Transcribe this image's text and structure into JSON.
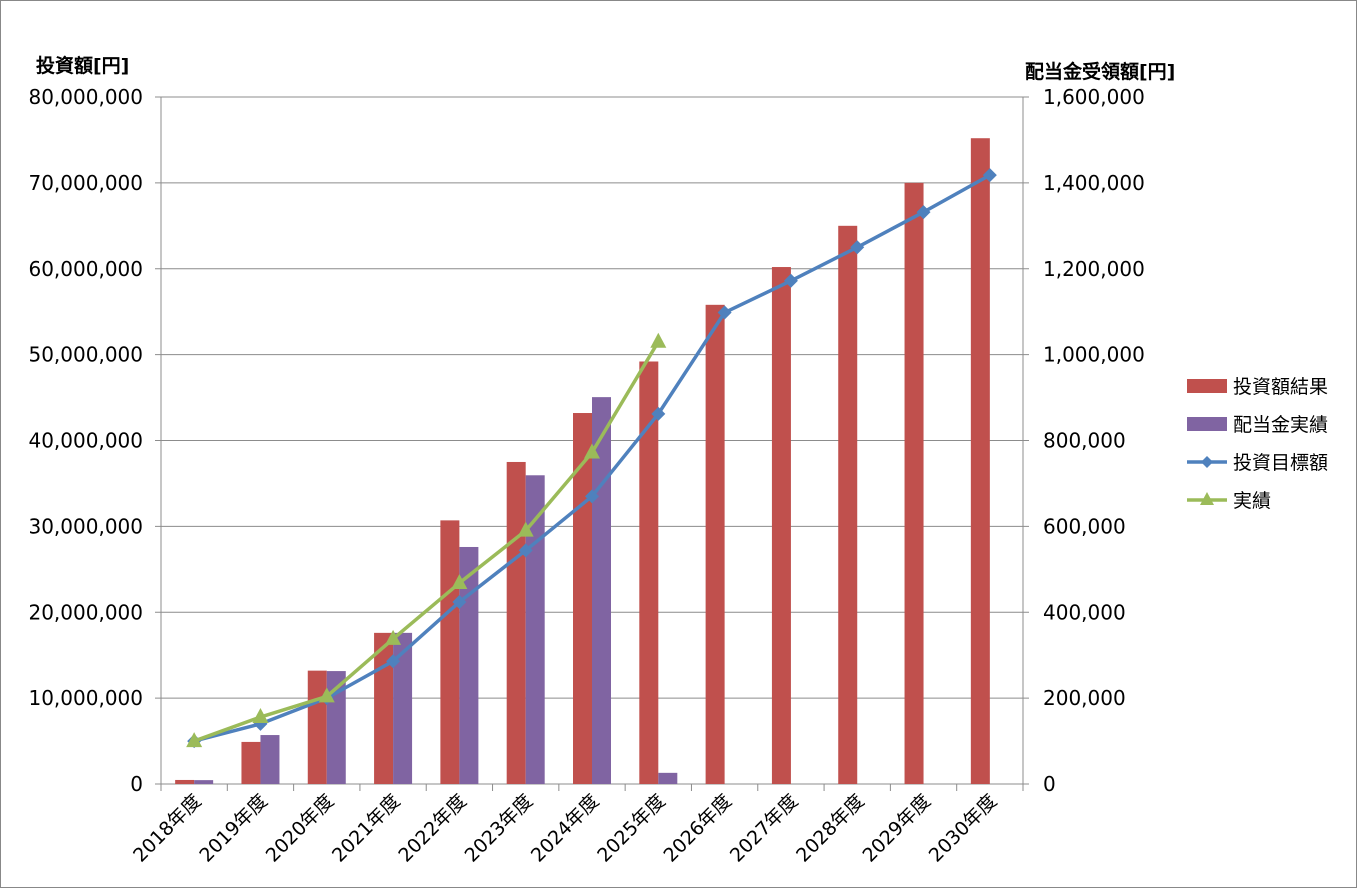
{
  "chart_data": {
    "type": "bar",
    "left_axis_title": "投資額[円]",
    "right_axis_title": "配当金受領額[円]",
    "categories": [
      "2018年度",
      "2019年度",
      "2020年度",
      "2021年度",
      "2022年度",
      "2023年度",
      "2024年度",
      "2025年度",
      "2026年度",
      "2027年度",
      "2028年度",
      "2029年度",
      "2030年度"
    ],
    "left_ylim": [
      0,
      80000000
    ],
    "right_ylim": [
      0,
      1600000
    ],
    "left_ticks": [
      "0",
      "10,000,000",
      "20,000,000",
      "30,000,000",
      "40,000,000",
      "50,000,000",
      "60,000,000",
      "70,000,000",
      "80,000,000"
    ],
    "right_ticks": [
      "0",
      "200,000",
      "400,000",
      "600,000",
      "800,000",
      "1,000,000",
      "1,200,000",
      "1,400,000",
      "1,600,000"
    ],
    "grid": true,
    "legend_position": "right",
    "series": [
      {
        "name": "投資額結果",
        "kind": "bar",
        "axis": "left",
        "color": "#C0504D",
        "values": [
          470000,
          4900000,
          13200000,
          17600000,
          30700000,
          37500000,
          43200000,
          49200000,
          55800000,
          60200000,
          65000000,
          70000000,
          75200000
        ]
      },
      {
        "name": "配当金実績",
        "kind": "bar",
        "axis": "right",
        "color": "#8064A2",
        "values": [
          9000,
          114000,
          263000,
          352000,
          552000,
          719000,
          901000,
          26000,
          null,
          null,
          null,
          null,
          null
        ]
      },
      {
        "name": "投資目標額",
        "kind": "line",
        "marker": "diamond",
        "axis": "left",
        "color": "#4F81BD",
        "values": [
          5000000,
          7000000,
          10000000,
          14300000,
          21200000,
          27200000,
          33500000,
          43100000,
          54900000,
          58600000,
          62500000,
          66600000,
          70900000
        ]
      },
      {
        "name": "実績",
        "kind": "line",
        "marker": "triangle",
        "axis": "left",
        "color": "#9BBB59",
        "values": [
          5000000,
          7800000,
          10200000,
          16900000,
          23400000,
          29500000,
          38600000,
          51500000,
          null,
          null,
          null,
          null,
          null
        ]
      }
    ]
  }
}
